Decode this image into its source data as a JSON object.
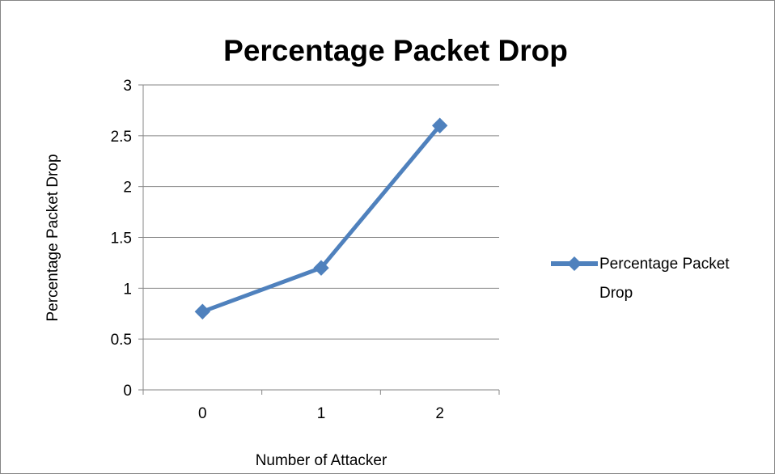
{
  "chart_data": {
    "type": "line",
    "title": "Percentage Packet Drop",
    "xlabel": "Number of Attacker",
    "ylabel": "Percentage Packet Drop",
    "categories": [
      "0",
      "1",
      "2"
    ],
    "series": [
      {
        "name": "Percentage Packet Drop",
        "values": [
          0.77,
          1.2,
          2.6
        ],
        "color": "#4F81BD",
        "marker": "diamond"
      }
    ],
    "ylim": [
      0,
      3
    ],
    "yticks": [
      "0",
      "0.5",
      "1",
      "1.5",
      "2",
      "2.5",
      "3"
    ],
    "grid": true,
    "legend_position": "right"
  }
}
